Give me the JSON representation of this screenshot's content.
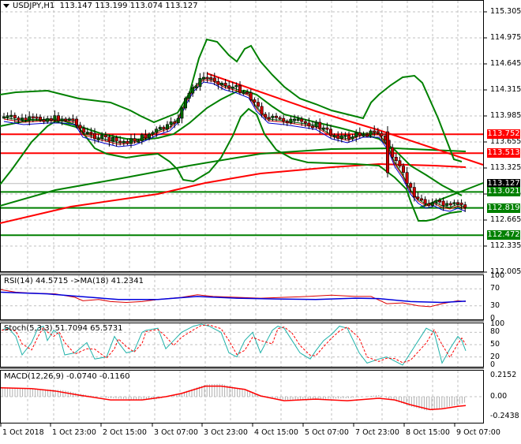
{
  "window": {
    "symbol_timeframe": "USDJPY,H1",
    "ohlc": "113.147 113.199 113.074 113.127"
  },
  "price_axis": {
    "ticks": [
      "115.305",
      "114.975",
      "114.645",
      "114.315",
      "113.985",
      "113.655",
      "113.325",
      "112.995",
      "112.665",
      "112.335",
      "112.005"
    ],
    "tags": [
      {
        "value": "113.752",
        "color": "#ff0000"
      },
      {
        "value": "113.513",
        "color": "#ff0000"
      },
      {
        "value": "113.127",
        "color": "#000000"
      },
      {
        "value": "113.021",
        "color": "#008000"
      },
      {
        "value": "112.819",
        "color": "#008000"
      },
      {
        "value": "112.472",
        "color": "#008000"
      }
    ]
  },
  "rsi": {
    "label": "RSI(14) 44.5715  ->MA(18) 41.2341",
    "ticks": [
      "100",
      "70",
      "30",
      "0"
    ]
  },
  "stoch": {
    "label": "Stoch(5,3,3) 51.7094 65.5731",
    "ticks": [
      "100",
      "80",
      "50",
      "20",
      "0"
    ]
  },
  "macd": {
    "label": "MACD(12,26,9) -0.0740 -0.1160",
    "ticks": [
      "0.2152",
      "0.00",
      "-0.2438"
    ]
  },
  "time_axis": {
    "labels": [
      "1 Oct 2018",
      "1 Oct 23:00",
      "2 Oct 15:00",
      "3 Oct 07:00",
      "3 Oct 23:00",
      "4 Oct 15:00",
      "5 Oct 07:00",
      "7 Oct 23:00",
      "8 Oct 15:00",
      "9 Oct 07:00"
    ]
  },
  "colors": {
    "bull_candle": "#006400",
    "bear_candle": "#cc0000",
    "bollinger": "#008000",
    "resistance": "#ff0000",
    "support": "#008000",
    "grid": "#c0c0c0",
    "rsi_line": "#dd0000",
    "rsi_ma": "#0000dd",
    "stoch_main": "#20b2aa",
    "stoch_signal": "#ff0000",
    "macd_signal": "#ff0000",
    "macd_hist": "#b0b0b0"
  },
  "chart_data": {
    "type": "candlestick",
    "title": "USDJPY,H1",
    "ylim": [
      112.005,
      115.305
    ],
    "horizontal_levels": {
      "resistance": [
        113.752,
        113.513
      ],
      "support": [
        113.021,
        112.819,
        112.472
      ]
    },
    "last_price": 113.127,
    "ohlc_last": {
      "open": 113.147,
      "high": 113.199,
      "low": 113.074,
      "close": 113.127
    },
    "approx_close_path": [
      {
        "x": "1 Oct 2018",
        "y": 113.92
      },
      {
        "x": "1 Oct 23:00",
        "y": 113.9
      },
      {
        "x": "2 Oct 15:00",
        "y": 113.62
      },
      {
        "x": "3 Oct 07:00",
        "y": 113.75
      },
      {
        "x": "3 Oct 23:00",
        "y": 114.45
      },
      {
        "x": "4 Oct 15:00",
        "y": 114.2
      },
      {
        "x": "5 Oct 07:00",
        "y": 113.8
      },
      {
        "x": "7 Oct 23:00",
        "y": 113.85
      },
      {
        "x": "8 Oct 15:00",
        "y": 112.85
      },
      {
        "x": "9 Oct 07:00",
        "y": 113.13
      }
    ],
    "indicators": {
      "rsi": {
        "period": 14,
        "value": 44.5715,
        "ma_period": 18,
        "ma_value": 41.2341,
        "levels": [
          70,
          30
        ]
      },
      "stoch": {
        "params": "5,3,3",
        "main": 51.7094,
        "signal": 65.5731,
        "levels": [
          80,
          50,
          20
        ]
      },
      "macd": {
        "params": "12,26,9",
        "main": -0.074,
        "signal": -0.116,
        "ylim": [
          -0.2438,
          0.2152
        ]
      }
    }
  }
}
